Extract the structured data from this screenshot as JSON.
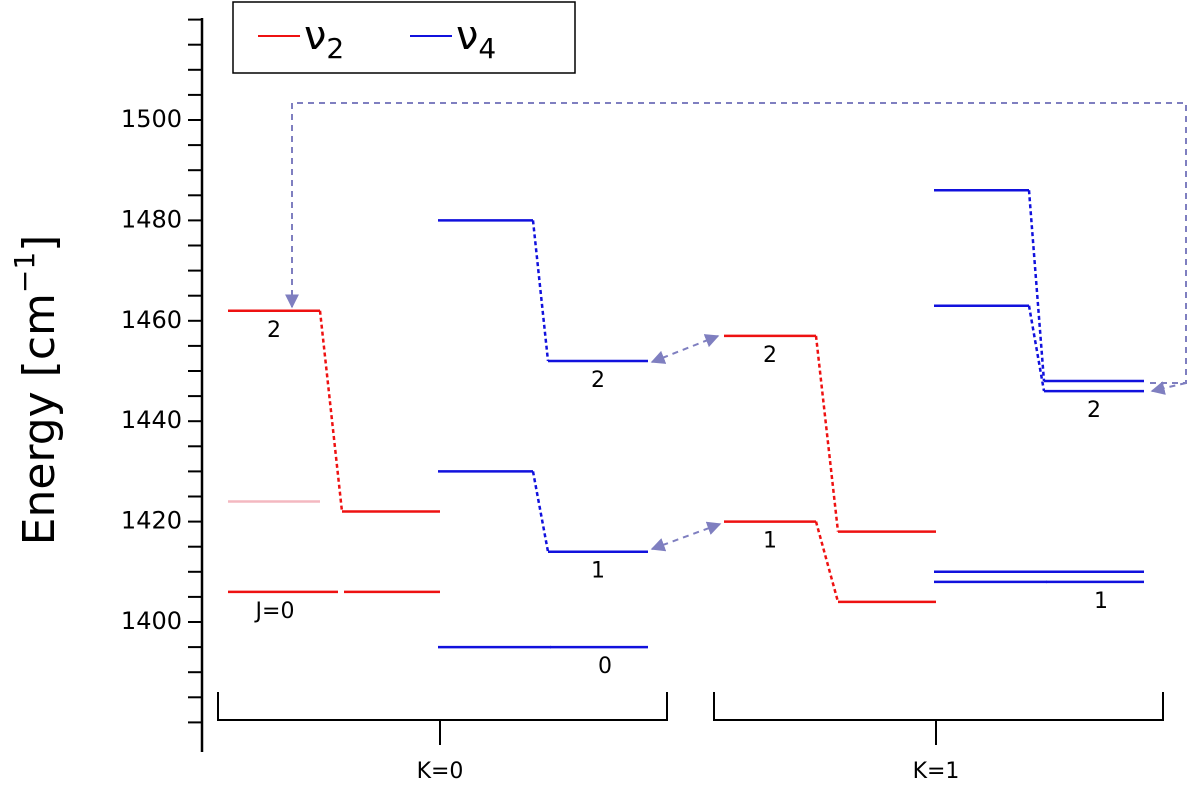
{
  "chart_data": {
    "type": "levels",
    "y_label": {
      "text": "Energy [cm",
      "sup": "−1",
      "end": "]"
    },
    "ylim": [
      1375,
      1520
    ],
    "yticks": [
      1400,
      1420,
      1440,
      1460,
      1480,
      1500
    ],
    "yminorticks": [
      1380,
      1385,
      1390,
      1395,
      1405,
      1410,
      1415,
      1425,
      1430,
      1435,
      1445,
      1450,
      1455,
      1465,
      1470,
      1475,
      1485,
      1490,
      1495,
      1505,
      1510,
      1515,
      1520
    ],
    "series": [
      {
        "name": "ν",
        "sub": "2",
        "color": "#ee1111",
        "label_side": "left"
      },
      {
        "name": "ν",
        "sub": "4",
        "color": "#1111dd",
        "label_side": "right"
      }
    ],
    "faded_color": "#f4b8c0",
    "groups": [
      {
        "label": "K=0",
        "levels": [
          {
            "series": 0,
            "values": [
              1462,
              1422
            ],
            "label": "2"
          },
          {
            "series": 0,
            "values": [
              1424,
              null
            ],
            "faded": true
          },
          {
            "series": 0,
            "values": [
              1406,
              1406
            ],
            "label": "J=0"
          },
          {
            "series": 1,
            "values": [
              1480,
              1452
            ],
            "label": "2"
          },
          {
            "series": 1,
            "values": [
              1430,
              1414
            ],
            "label": "1"
          },
          {
            "series": 1,
            "values": [
              1395,
              1395
            ],
            "label": "0"
          }
        ]
      },
      {
        "label": "K=1",
        "levels": [
          {
            "series": 0,
            "values": [
              1457,
              1418
            ],
            "label": "2"
          },
          {
            "series": 0,
            "values": [
              1420,
              1404
            ],
            "label": "1"
          },
          {
            "series": 1,
            "values": [
              1486,
              1448
            ]
          },
          {
            "series": 1,
            "values": [
              1463,
              1446
            ],
            "label": "2"
          },
          {
            "series": 1,
            "values": [
              1410,
              1410
            ]
          },
          {
            "series": 1,
            "values": [
              1408,
              1408
            ],
            "label": "1"
          }
        ]
      }
    ]
  }
}
